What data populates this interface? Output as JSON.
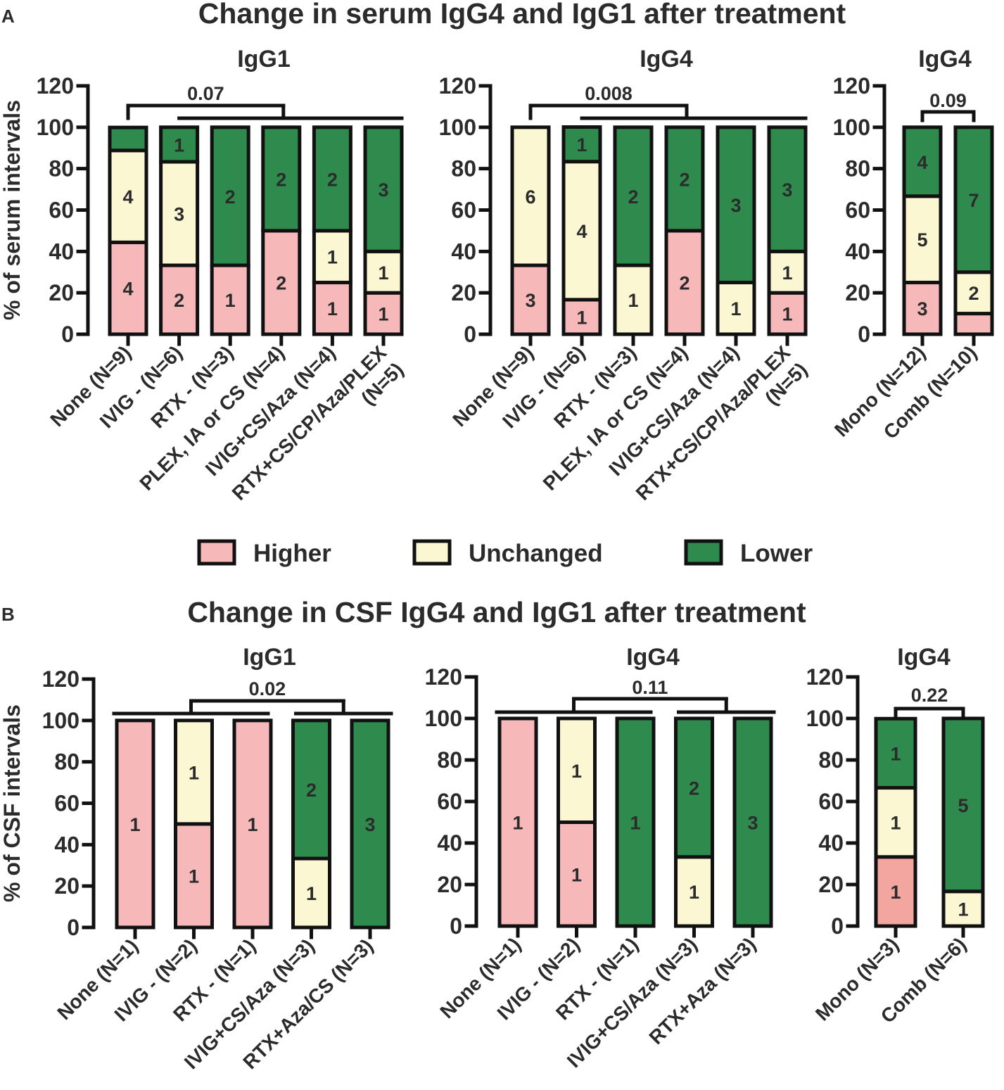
{
  "colors": {
    "Higher": "#f6b8b8",
    "Unchanged": "#fbf7d3",
    "Lower": "#2f8a4e"
  },
  "panels": [
    {
      "letter": "A",
      "title": "Change in serum IgG4 and IgG1 after treatment"
    },
    {
      "letter": "B",
      "title": "Change in CSF IgG4 and IgG1 after treatment"
    }
  ],
  "legend": [
    {
      "label": "Higher",
      "key": "Higher"
    },
    {
      "label": "Unchanged",
      "key": "Unchanged"
    },
    {
      "label": "Lower",
      "key": "Lower"
    }
  ],
  "chart_data": [
    {
      "type": "bar",
      "stacked": true,
      "panel": "A",
      "title": "IgG1",
      "ylabel": "% of serum intervals",
      "ylim": [
        0,
        120
      ],
      "yticks": [
        "0",
        "20",
        "40",
        "60",
        "80",
        "100",
        "120"
      ],
      "categories": [
        [
          "None (N=9)"
        ],
        [
          "IVIG - (N=6)"
        ],
        [
          "RTX - (N=3)"
        ],
        [
          "PLEX, IA or CS (N=4)"
        ],
        [
          "IVIG+CS/Aza (N=4)"
        ],
        [
          "RTX+CS/CP/Aza/PLEX",
          "(N=5)"
        ]
      ],
      "series": [
        {
          "name": "Higher",
          "values": [
            44.4,
            33.3,
            33.3,
            50,
            25,
            20
          ],
          "counts": [
            "4",
            "2",
            "1",
            "2",
            "1",
            "1"
          ]
        },
        {
          "name": "Unchanged",
          "values": [
            44.4,
            50,
            0,
            0,
            25,
            20
          ],
          "counts": [
            "4",
            "3",
            "",
            "",
            "1",
            "1"
          ]
        },
        {
          "name": "Lower",
          "values": [
            11.1,
            16.7,
            66.7,
            50,
            50,
            60
          ],
          "counts": [
            "",
            "1",
            "2",
            "2",
            "2",
            "3"
          ]
        }
      ],
      "comparison": {
        "pvalue": "0.07",
        "type": "group",
        "from": 0,
        "to": [
          1,
          5
        ]
      }
    },
    {
      "type": "bar",
      "stacked": true,
      "panel": "A",
      "title": "IgG4",
      "ylim": [
        0,
        120
      ],
      "yticks": [
        "0",
        "20",
        "40",
        "60",
        "80",
        "100",
        "120"
      ],
      "categories": [
        [
          "None (N=9)"
        ],
        [
          "IVIG - (N=6)"
        ],
        [
          "RTX - (N=3)"
        ],
        [
          "PLEX, IA or CS (N=4)"
        ],
        [
          "IVIG+CS/Aza (N=4)"
        ],
        [
          "RTX+CS/CP/Aza/PLEX",
          "(N=5)"
        ]
      ],
      "series": [
        {
          "name": "Higher",
          "values": [
            33.3,
            16.7,
            0,
            50,
            0,
            20
          ],
          "counts": [
            "3",
            "1",
            "",
            "2",
            "",
            "1"
          ]
        },
        {
          "name": "Unchanged",
          "values": [
            66.7,
            66.7,
            33.3,
            0,
            25,
            20
          ],
          "counts": [
            "6",
            "4",
            "1",
            "",
            "1",
            "1"
          ]
        },
        {
          "name": "Lower",
          "values": [
            0,
            16.7,
            66.7,
            50,
            75,
            60
          ],
          "counts": [
            "",
            "1",
            "2",
            "2",
            "3",
            "3"
          ]
        }
      ],
      "comparison": {
        "pvalue": "0.008",
        "type": "group",
        "from": 0,
        "to": [
          1,
          5
        ]
      }
    },
    {
      "type": "bar",
      "stacked": true,
      "panel": "A",
      "title": "IgG4",
      "ylim": [
        0,
        120
      ],
      "yticks": [
        "0",
        "20",
        "40",
        "60",
        "80",
        "100",
        "120"
      ],
      "categories": [
        [
          "Mono (N=12)"
        ],
        [
          "Comb (N=10)"
        ]
      ],
      "series": [
        {
          "name": "Higher",
          "values": [
            25,
            10
          ],
          "counts": [
            "3",
            ""
          ]
        },
        {
          "name": "Unchanged",
          "values": [
            41.7,
            20
          ],
          "counts": [
            "5",
            "2"
          ]
        },
        {
          "name": "Lower",
          "values": [
            33.3,
            70
          ],
          "counts": [
            "4",
            "7"
          ]
        }
      ],
      "comparison": {
        "pvalue": "0.09",
        "type": "pair",
        "from": 0,
        "to": 1
      }
    },
    {
      "type": "bar",
      "stacked": true,
      "panel": "B",
      "title": "IgG1",
      "ylabel": "% of CSF intervals",
      "ylim": [
        0,
        120
      ],
      "yticks": [
        "0",
        "20",
        "40",
        "60",
        "80",
        "100",
        "120"
      ],
      "categories": [
        [
          "None (N=1)"
        ],
        [
          "IVIG - (N=2)"
        ],
        [
          "RTX - (N=1)"
        ],
        [
          "IVIG+CS/Aza (N=3)"
        ],
        [
          "RTX+Aza/CS (N=3)"
        ]
      ],
      "series": [
        {
          "name": "Higher",
          "values": [
            100,
            50,
            100,
            0,
            0
          ],
          "counts": [
            "1",
            "1",
            "1",
            "",
            ""
          ]
        },
        {
          "name": "Unchanged",
          "values": [
            0,
            50,
            0,
            33.3,
            0
          ],
          "counts": [
            "",
            "1",
            "",
            "1",
            ""
          ]
        },
        {
          "name": "Lower",
          "values": [
            0,
            0,
            0,
            66.7,
            100
          ],
          "counts": [
            "",
            "",
            "",
            "2",
            "3"
          ]
        }
      ],
      "comparison": {
        "pvalue": "0.02",
        "type": "groups",
        "groupA": [
          0,
          2
        ],
        "groupB": [
          3,
          4
        ]
      }
    },
    {
      "type": "bar",
      "stacked": true,
      "panel": "B",
      "title": "IgG4",
      "ylim": [
        0,
        120
      ],
      "yticks": [
        "0",
        "20",
        "40",
        "60",
        "80",
        "100",
        "120"
      ],
      "categories": [
        [
          "None (N=1)"
        ],
        [
          "IVIG - (N=2)"
        ],
        [
          "RTX - (N=1)"
        ],
        [
          "IVIG+CS/Aza (N=3)"
        ],
        [
          "RTX+Aza (N=3)"
        ]
      ],
      "series": [
        {
          "name": "Higher",
          "values": [
            100,
            50,
            0,
            0,
            0
          ],
          "counts": [
            "1",
            "1",
            "",
            "",
            ""
          ]
        },
        {
          "name": "Unchanged",
          "values": [
            0,
            50,
            0,
            33.3,
            0
          ],
          "counts": [
            "",
            "1",
            "",
            "1",
            ""
          ]
        },
        {
          "name": "Lower",
          "values": [
            0,
            0,
            100,
            66.7,
            100
          ],
          "counts": [
            "",
            "",
            "1",
            "2",
            "3"
          ]
        }
      ],
      "comparison": {
        "pvalue": "0.11",
        "type": "groups",
        "groupA": [
          0,
          2
        ],
        "groupB": [
          3,
          4
        ]
      }
    },
    {
      "type": "bar",
      "stacked": true,
      "panel": "B",
      "title": "IgG4",
      "ylim": [
        0,
        120
      ],
      "yticks": [
        "0",
        "20",
        "40",
        "60",
        "80",
        "100",
        "120"
      ],
      "categories": [
        [
          "Mono (N=3)"
        ],
        [
          "Comb (N=6)"
        ]
      ],
      "series": [
        {
          "name": "Higher",
          "values": [
            33.3,
            0
          ],
          "counts": [
            "1",
            ""
          ],
          "color": "#f3a6a0"
        },
        {
          "name": "Unchanged",
          "values": [
            33.3,
            16.7
          ],
          "counts": [
            "1",
            "1"
          ]
        },
        {
          "name": "Lower",
          "values": [
            33.3,
            83.3
          ],
          "counts": [
            "1",
            "5"
          ]
        }
      ],
      "comparison": {
        "pvalue": "0.22",
        "type": "pair",
        "from": 0,
        "to": 1
      }
    }
  ]
}
